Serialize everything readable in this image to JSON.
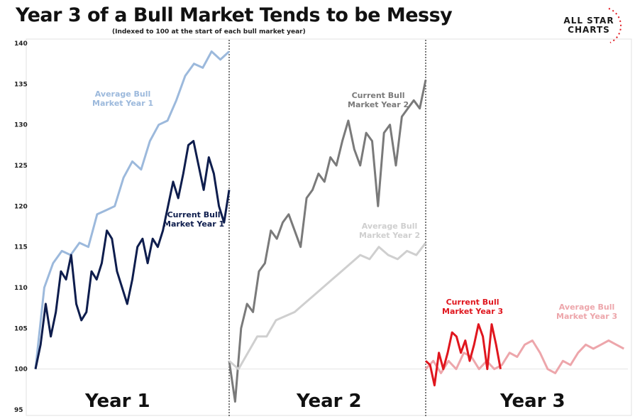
{
  "header": {
    "title": "Year 3 of a Bull Market Tends to be Messy",
    "subtitle": "(Indexed to 100 at the start of each bull market year)",
    "logo_line1": "ALL STAR",
    "logo_line2": "CHARTS"
  },
  "chart_data": {
    "type": "line",
    "title": "Year 3 of a Bull Market Tends to be Messy",
    "subtitle": "(Indexed to 100 at the start of each bull market year)",
    "ylim": [
      95,
      140
    ],
    "yticks": [
      "95",
      "100",
      "105",
      "110",
      "115",
      "120",
      "125",
      "130",
      "135",
      "140"
    ],
    "baseline": 100,
    "panels": [
      "Year 1",
      "Year 2",
      "Year 3"
    ],
    "series": [
      {
        "name": "Average Bull Market Year 1",
        "label1": "Average Bull",
        "label2": "Market Year 1",
        "panel": 0,
        "year_fraction": 1.0,
        "color": "#9cb9dc",
        "values": [
          100,
          110,
          113,
          114.5,
          114,
          115.5,
          115,
          119,
          119.5,
          120,
          123.5,
          125.5,
          124.5,
          128,
          130,
          130.5,
          133,
          136,
          137.5,
          137,
          139,
          138,
          139
        ]
      },
      {
        "name": "Current Bull Market Year 1",
        "label1": "Current Bull",
        "label2": "Market Year 1",
        "panel": 0,
        "year_fraction": 1.0,
        "color": "#0e1d4d",
        "values": [
          100,
          103,
          108,
          104,
          107,
          112,
          111,
          114,
          108,
          106,
          107,
          112,
          111,
          113,
          117,
          116,
          112,
          110,
          108,
          111,
          115,
          116,
          113,
          116,
          115,
          117,
          120,
          123,
          121,
          124,
          127.5,
          128,
          125,
          122,
          126,
          124,
          120,
          118,
          122
        ]
      },
      {
        "name": "Current Bull Market Year 2",
        "label1": "Current Bull",
        "label2": "Market Year 2",
        "panel": 1,
        "year_fraction": 1.0,
        "color": "#7a7a7a",
        "values": [
          101,
          96,
          105,
          108,
          107,
          112,
          113,
          117,
          116,
          118,
          119,
          117,
          115,
          121,
          122,
          124,
          123,
          126,
          125,
          128,
          130.5,
          127,
          125,
          129,
          128,
          120,
          129,
          130,
          125,
          131,
          132,
          133,
          132,
          135.5
        ]
      },
      {
        "name": "Average Bull Market Year 2",
        "label1": "Average Bull",
        "label2": "Market Year 2",
        "panel": 1,
        "year_fraction": 1.0,
        "color": "#cfcfcf",
        "values": [
          101,
          100,
          102,
          104,
          104,
          106,
          106.5,
          107,
          108,
          109,
          110,
          111,
          112,
          113,
          114,
          113.5,
          115,
          114,
          113.5,
          114.5,
          114,
          115.5
        ]
      },
      {
        "name": "Average Bull Market Year 3",
        "label1": "Average Bull",
        "label2": "Market Year 3",
        "panel": 2,
        "year_fraction": 0.98,
        "color": "#eda6ab",
        "values": [
          100,
          101,
          99.5,
          101,
          100,
          102,
          101.5,
          100,
          101,
          100,
          100.5,
          102,
          101.5,
          103,
          103.5,
          102,
          100,
          99.5,
          101,
          100.5,
          102,
          103,
          102.5,
          103,
          103.5,
          103,
          102.5
        ]
      },
      {
        "name": "Current Bull Market Year 3",
        "label1": "Current Bull",
        "label2": "Market Year 3",
        "panel": 2,
        "year_fraction": 0.37,
        "color": "#e0161e",
        "values": [
          101,
          100.5,
          98,
          102,
          100,
          102,
          104.5,
          104,
          102,
          103.5,
          101,
          103,
          105.5,
          104,
          100,
          105.5,
          103,
          100
        ]
      }
    ]
  }
}
